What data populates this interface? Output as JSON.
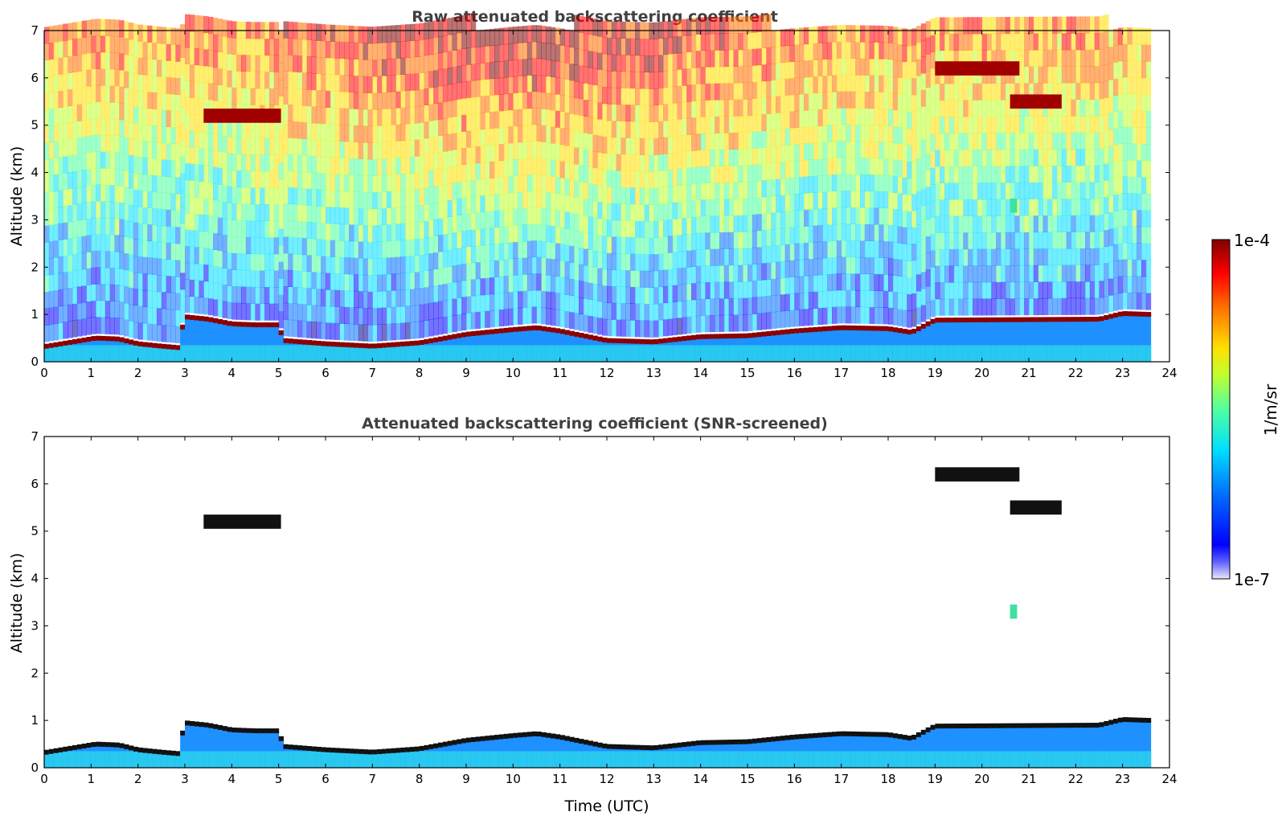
{
  "chart_data": [
    {
      "type": "heatmap",
      "title": "Raw attenuated backscattering coefficient",
      "xlabel": "",
      "ylabel": "Altitude (km)",
      "xlim": [
        0,
        24
      ],
      "ylim": [
        0,
        7
      ],
      "xticks": [
        "0",
        "1",
        "2",
        "3",
        "4",
        "5",
        "6",
        "7",
        "8",
        "9",
        "10",
        "11",
        "12",
        "13",
        "14",
        "15",
        "16",
        "17",
        "18",
        "19",
        "20",
        "21",
        "22",
        "23",
        "24"
      ],
      "yticks": [
        "0",
        "1",
        "2",
        "3",
        "4",
        "5",
        "6",
        "7"
      ],
      "data_end_time": 23.6,
      "layer_top_profile": [
        [
          0.0,
          0.32
        ],
        [
          1.1,
          0.5
        ],
        [
          1.6,
          0.48
        ],
        [
          2.0,
          0.38
        ],
        [
          2.5,
          0.33
        ],
        [
          2.85,
          0.3
        ],
        [
          3.0,
          0.95
        ],
        [
          3.5,
          0.9
        ],
        [
          4.0,
          0.8
        ],
        [
          4.5,
          0.78
        ],
        [
          5.0,
          0.78
        ],
        [
          5.1,
          0.45
        ],
        [
          6.0,
          0.38
        ],
        [
          7.0,
          0.33
        ],
        [
          8.0,
          0.4
        ],
        [
          9.0,
          0.58
        ],
        [
          10.0,
          0.68
        ],
        [
          10.5,
          0.72
        ],
        [
          11.0,
          0.65
        ],
        [
          12.0,
          0.45
        ],
        [
          13.0,
          0.42
        ],
        [
          14.0,
          0.53
        ],
        [
          15.0,
          0.55
        ],
        [
          16.0,
          0.65
        ],
        [
          17.0,
          0.72
        ],
        [
          18.0,
          0.7
        ],
        [
          18.5,
          0.62
        ],
        [
          19.0,
          0.88
        ],
        [
          22.5,
          0.9
        ],
        [
          23.0,
          1.02
        ],
        [
          23.6,
          1.0
        ]
      ],
      "cloud_features": [
        {
          "t_start": 3.4,
          "t_end": 5.05,
          "alt_km": 5.2,
          "level": "high"
        },
        {
          "t_start": 19.0,
          "t_end": 20.8,
          "alt_km": 6.2,
          "level": "high"
        },
        {
          "t_start": 20.6,
          "t_end": 21.7,
          "alt_km": 5.5,
          "level": "high"
        },
        {
          "t_start": 20.6,
          "t_end": 20.75,
          "alt_km": 3.3,
          "level": "mid"
        }
      ]
    },
    {
      "type": "heatmap",
      "title": "Attenuated backscattering coefficient (SNR-screened)",
      "xlabel": "Time (UTC)",
      "ylabel": "Altitude (km)",
      "xlim": [
        0,
        24
      ],
      "ylim": [
        0,
        7
      ],
      "xticks": [
        "0",
        "1",
        "2",
        "3",
        "4",
        "5",
        "6",
        "7",
        "8",
        "9",
        "10",
        "11",
        "12",
        "13",
        "14",
        "15",
        "16",
        "17",
        "18",
        "19",
        "20",
        "21",
        "22",
        "23",
        "24"
      ],
      "yticks": [
        "0",
        "1",
        "2",
        "3",
        "4",
        "5",
        "6",
        "7"
      ],
      "data_end_time": 23.6
    }
  ],
  "colorbar": {
    "label": "1/m/sr",
    "max_label": "1e-4",
    "min_label": "1e-7",
    "colormap": [
      "#00008f",
      "#0000ff",
      "#0070ff",
      "#00dfff",
      "#50ff9f",
      "#c0ff30",
      "#ffe000",
      "#ff7000",
      "#ff0000",
      "#800000"
    ],
    "low_color": "#e8e8ff"
  }
}
